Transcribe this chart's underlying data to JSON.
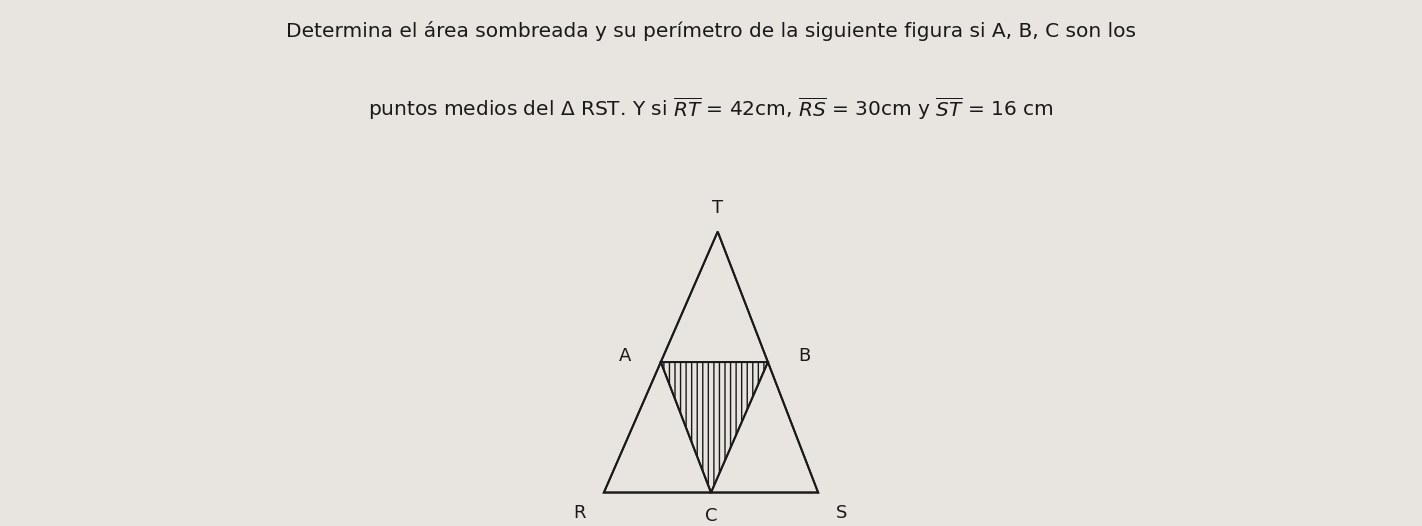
{
  "title_line1": "Determina el área sombreada y su perímetro de la siguiente figura si A, B, C son los",
  "title_line2_parts": [
    "puntos medios del Δ RST. Y si ",
    "RT",
    " = 42cm, ",
    "RS",
    " = 30cm y ",
    "ST",
    " = 16 cm"
  ],
  "background_color": "#e8e4df",
  "triangle_color": "#1a1a1a",
  "label_color": "#1a1a1a",
  "R": [
    0.18,
    0.0
  ],
  "S": [
    0.82,
    0.0
  ],
  "T": [
    0.52,
    0.88
  ],
  "label_fontsize": 13,
  "title_fontsize": 14.5,
  "lw": 1.4
}
